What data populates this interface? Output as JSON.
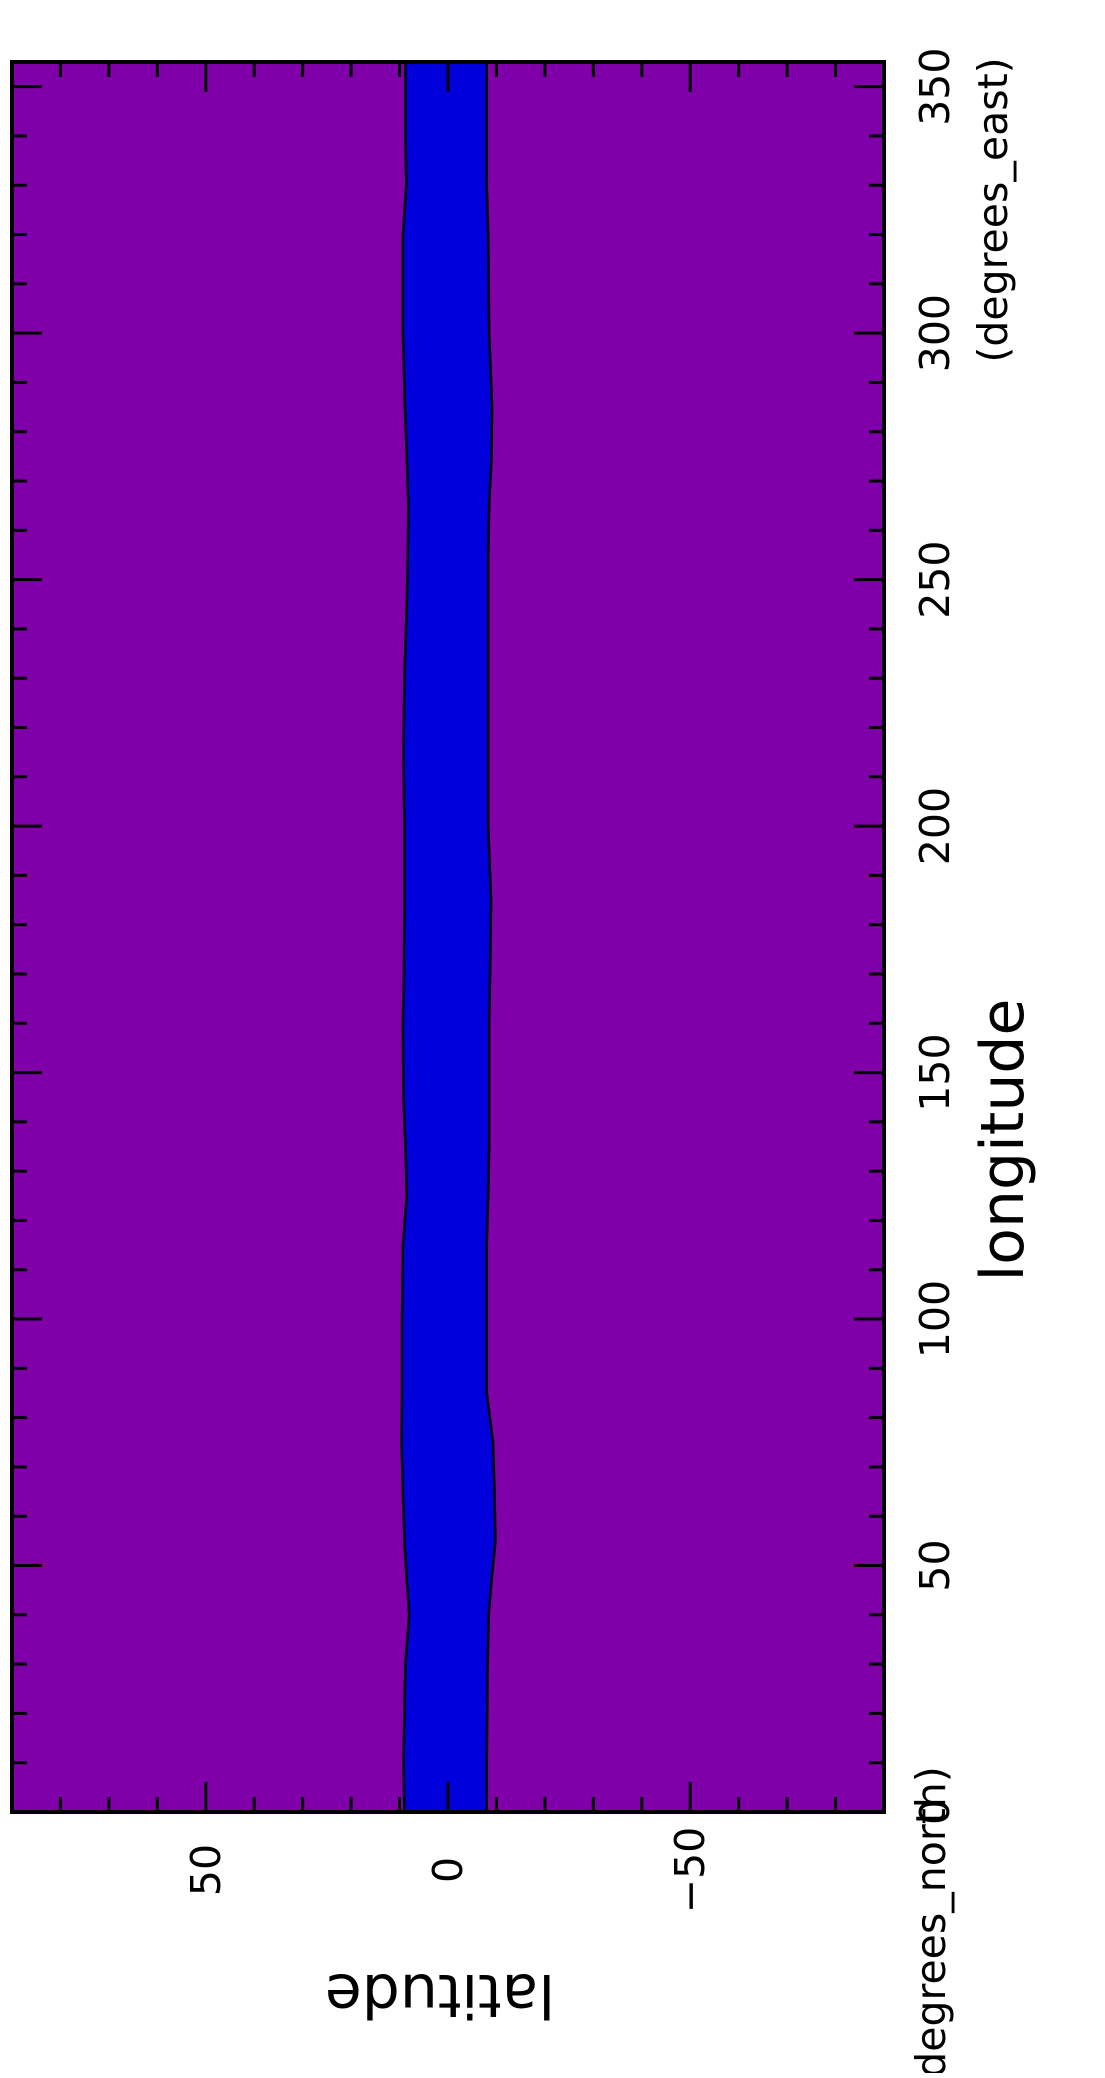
{
  "chart_data": {
    "type": "area",
    "xlabel": "longitude",
    "xunits": "(degrees_east)",
    "ylabel": "latitude",
    "yunits": "(degrees_north)",
    "xlim": [
      0,
      355
    ],
    "ylim": [
      -90,
      90
    ],
    "xticks": [
      0,
      50,
      100,
      150,
      200,
      250,
      300,
      350
    ],
    "xtick_labels": [
      "0",
      "50",
      "100",
      "150",
      "200",
      "250",
      "300",
      "350"
    ],
    "yticks": [
      50,
      0,
      -50
    ],
    "ytick_labels": [
      "50",
      "0",
      "−50"
    ],
    "grid": false,
    "orientation": "rotated 90 degrees counter-clockwise",
    "colors": {
      "background": "#7f00a8",
      "band": "#0000dd",
      "outline": "#000000"
    },
    "band": {
      "x": [
        0,
        10,
        20,
        30,
        40,
        47,
        55,
        65,
        75,
        85,
        100,
        115,
        125,
        135,
        145,
        160,
        170,
        185,
        200,
        215,
        230,
        245,
        255,
        265,
        275,
        285,
        300,
        320,
        330,
        340,
        355
      ],
      "upper": [
        9.0,
        9.2,
        9.0,
        8.8,
        8.0,
        8.5,
        9.0,
        9.3,
        9.6,
        9.5,
        9.5,
        9.3,
        8.5,
        8.8,
        9.2,
        9.3,
        9.1,
        9.0,
        9.0,
        9.2,
        9.0,
        8.5,
        8.3,
        8.2,
        8.5,
        8.9,
        9.3,
        9.3,
        8.6,
        8.8,
        8.8
      ],
      "lower": [
        -8.0,
        -8.0,
        -8.1,
        -8.2,
        -8.4,
        -9.0,
        -9.8,
        -9.6,
        -9.3,
        -8.0,
        -8.0,
        -8.0,
        -8.3,
        -8.5,
        -8.5,
        -8.5,
        -8.7,
        -8.9,
        -8.3,
        -8.3,
        -8.3,
        -8.3,
        -8.3,
        -8.5,
        -9.0,
        -9.1,
        -8.5,
        -8.3,
        -8.0,
        -8.0,
        -8.0
      ]
    }
  }
}
